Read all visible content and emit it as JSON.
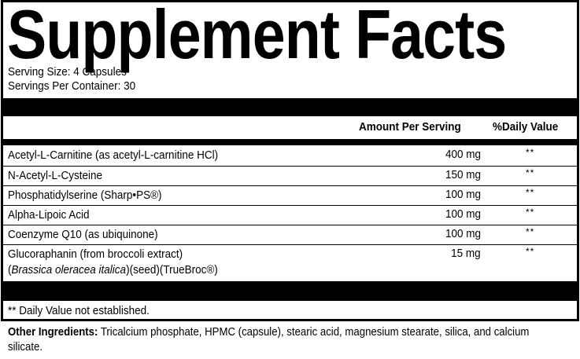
{
  "title": "Supplement Facts",
  "serving_size": "Serving Size: 4 Capsules",
  "servings_per_container": "Servings Per Container: 30",
  "columns": {
    "amount": "Amount Per Serving",
    "daily_value": "%Daily Value"
  },
  "rows": [
    {
      "name": "Acetyl-L-Carnitine (as acetyl-L-carnitine HCl)",
      "amount": "400 mg",
      "dv": "**"
    },
    {
      "name": "N-Acetyl-L-Cysteine",
      "amount": "150 mg",
      "dv": "**"
    },
    {
      "name": "Phosphatidylserine (Sharp•PS®)",
      "amount": "100 mg",
      "dv": "**"
    },
    {
      "name": "Alpha-Lipoic Acid",
      "amount": "100 mg",
      "dv": "**"
    },
    {
      "name": "Coenzyme Q10 (as ubiquinone)",
      "amount": "100 mg",
      "dv": "**"
    },
    {
      "name": "Glucoraphanin (from broccoli extract)",
      "name_line2_italic": "Brassica oleracea italica",
      "name_line2_rest": ")(seed)(TrueBroc®)",
      "name_line2_open": "(",
      "amount": "15 mg",
      "dv": "**"
    }
  ],
  "footnote": "** Daily Value not established.",
  "other_ingredients": {
    "label": "Other Ingredients:",
    "text": " Tricalcium phosphate, HPMC (capsule), stearic acid, magnesium stearate, silica, and calcium silicate."
  }
}
